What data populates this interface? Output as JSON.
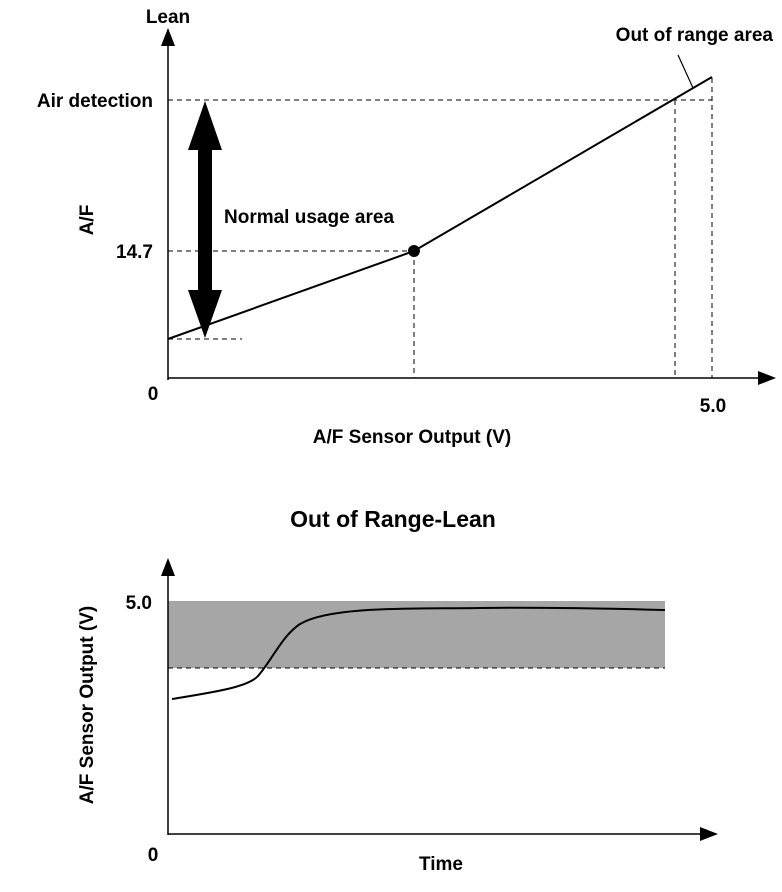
{
  "colors": {
    "ink": "#000000",
    "background": "#ffffff",
    "range_band": "#a6a6a6"
  },
  "top_diagram": {
    "y_axis_top_label": "Lean",
    "y_axis_label": "A/F",
    "y_tick_air_detection": "Air detection",
    "y_tick_stoich": "14.7",
    "origin_label": "0",
    "x_tick_max": "5.0",
    "x_axis_label": "A/F Sensor Output (V)",
    "normal_usage_label": "Normal usage area",
    "out_of_range_label": "Out of range area"
  },
  "bottom_diagram": {
    "title": "Out of Range-Lean",
    "y_axis_label": "A/F Sensor Output (V)",
    "y_tick_max": "5.0",
    "origin_label": "0",
    "x_axis_label": "Time"
  }
}
